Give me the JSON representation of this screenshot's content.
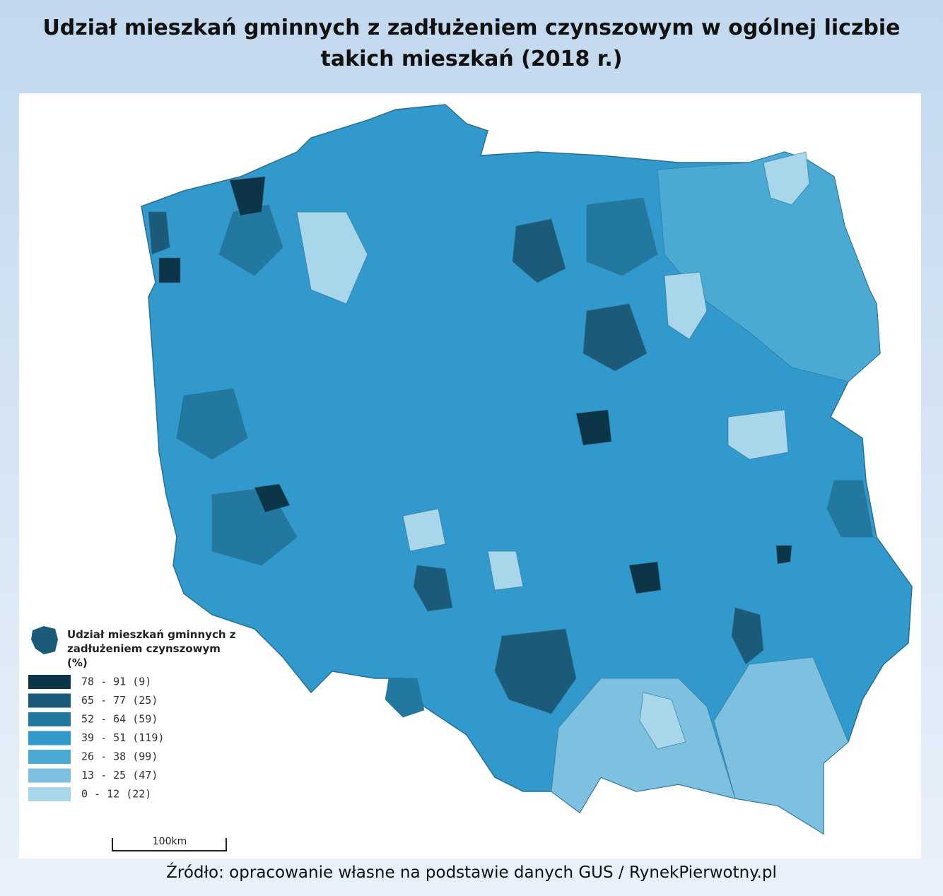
{
  "title": "Udział mieszkań gminnych z zadłużeniem czynszowym w ogólnej liczbie takich mieszkań (2018 r.)",
  "legend": {
    "title": "Udział mieszkań gminnych z zadłużeniem czynszowym (%)",
    "items": [
      {
        "label": "78 - 91 (9)",
        "color": "#0d3548"
      },
      {
        "label": "65 - 77 (25)",
        "color": "#1b5a78"
      },
      {
        "label": "52 - 64 (59)",
        "color": "#2378a0"
      },
      {
        "label": "39 - 51 (119)",
        "color": "#3299cc"
      },
      {
        "label": "26 - 38 (99)",
        "color": "#4aaad4"
      },
      {
        "label": "13 - 25 (47)",
        "color": "#7dc0df"
      },
      {
        "label": "0 - 12 (22)",
        "color": "#a8d6ea"
      }
    ]
  },
  "scale_label": "100km",
  "source": "Źródło: opracowanie własne na podstawie danych GUS / RynekPierwotny.pl"
}
